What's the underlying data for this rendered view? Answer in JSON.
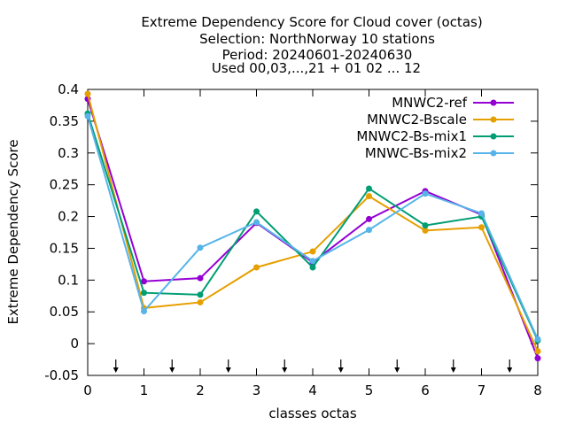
{
  "chart_data": {
    "type": "line",
    "title_lines": [
      "Extreme Dependency Score  for Cloud cover (octas)",
      "Selection: NorthNorway      10 stations",
      "Period: 20240601-20240630",
      "Used 00,03,...,21 + 01 02 ... 12"
    ],
    "xlabel": "classes octas",
    "ylabel": "Extreme Dependency Score",
    "xlim": [
      0,
      8
    ],
    "ylim": [
      -0.05,
      0.4
    ],
    "x_ticks": [
      "0",
      "1",
      "2",
      "3",
      "4",
      "5",
      "6",
      "7",
      "8"
    ],
    "y_ticks": [
      "-0.05",
      "0",
      "0.05",
      "0.1",
      "0.15",
      "0.2",
      "0.25",
      "0.3",
      "0.35",
      "0.4"
    ],
    "arrow_markers_x": [
      0.5,
      1.5,
      2.5,
      3.5,
      4.5,
      5.5,
      6.5,
      7.5
    ],
    "legend_position": "top-right",
    "x": [
      0,
      1,
      2,
      3,
      4,
      5,
      6,
      7,
      8
    ],
    "series": [
      {
        "name": "MNWC2-ref",
        "color": "#9400d3",
        "values": [
          0.385,
          0.098,
          0.103,
          0.19,
          0.128,
          0.196,
          0.24,
          0.203,
          -0.023
        ]
      },
      {
        "name": "MNWC2-Bscale",
        "color": "#e69f00",
        "values": [
          0.393,
          0.056,
          0.065,
          0.12,
          0.145,
          0.232,
          0.178,
          0.183,
          -0.012
        ]
      },
      {
        "name": "MNWC2-Bs-mix1",
        "color": "#009e73",
        "values": [
          0.362,
          0.08,
          0.077,
          0.208,
          0.12,
          0.244,
          0.186,
          0.2,
          0.005
        ]
      },
      {
        "name": "MNWC-Bs-mix2",
        "color": "#56b4e9",
        "values": [
          0.358,
          0.051,
          0.151,
          0.191,
          0.13,
          0.179,
          0.236,
          0.205,
          0.007
        ]
      }
    ]
  }
}
